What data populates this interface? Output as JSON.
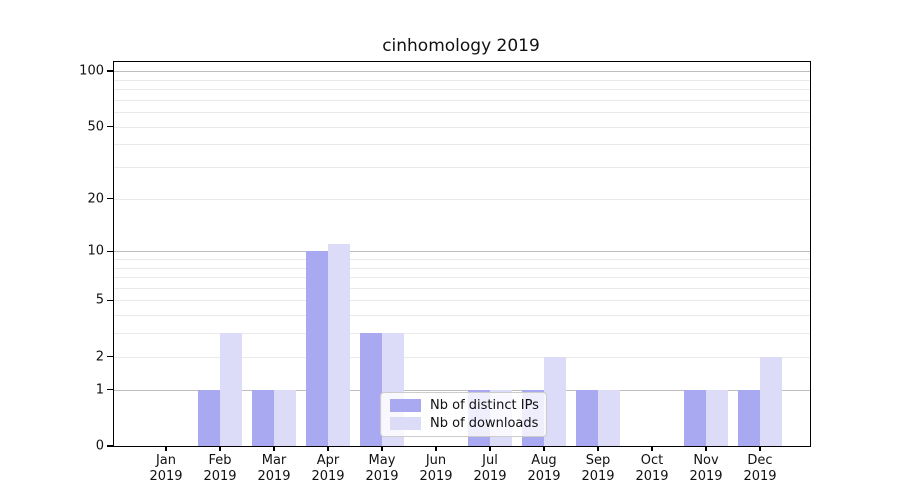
{
  "chart_data": {
    "type": "bar",
    "title": "cinhomology 2019",
    "year": "2019",
    "categories": [
      "Jan",
      "Feb",
      "Mar",
      "Apr",
      "May",
      "Jun",
      "Jul",
      "Aug",
      "Sep",
      "Oct",
      "Nov",
      "Dec"
    ],
    "series": [
      {
        "name": "Nb of distinct IPs",
        "color": "#a9a9f1",
        "values": [
          0,
          1,
          1,
          10,
          3,
          0,
          1,
          1,
          1,
          0,
          1,
          1
        ]
      },
      {
        "name": "Nb of downloads",
        "color": "#dcdcf8",
        "values": [
          0,
          3,
          1,
          11,
          3,
          0,
          1,
          2,
          1,
          0,
          1,
          2
        ]
      }
    ],
    "y_axis": {
      "scale": "log1p",
      "ticks": [
        0,
        1,
        2,
        5,
        10,
        20,
        50,
        100
      ],
      "major_grid": [
        1,
        10,
        100
      ],
      "minor_grid": [
        2,
        3,
        4,
        5,
        6,
        7,
        8,
        9,
        20,
        30,
        40,
        50,
        60,
        70,
        80,
        90
      ],
      "ylim": [
        0,
        112
      ]
    },
    "legend": {
      "position": "lower-center",
      "entries": [
        "Nb of distinct IPs",
        "Nb of downloads"
      ]
    },
    "colors": {
      "major_grid": "#bdbdbd",
      "minor_grid": "#eaeaea",
      "spine": "#000000",
      "text": "#111111",
      "legend_border": "#cccccc"
    }
  }
}
